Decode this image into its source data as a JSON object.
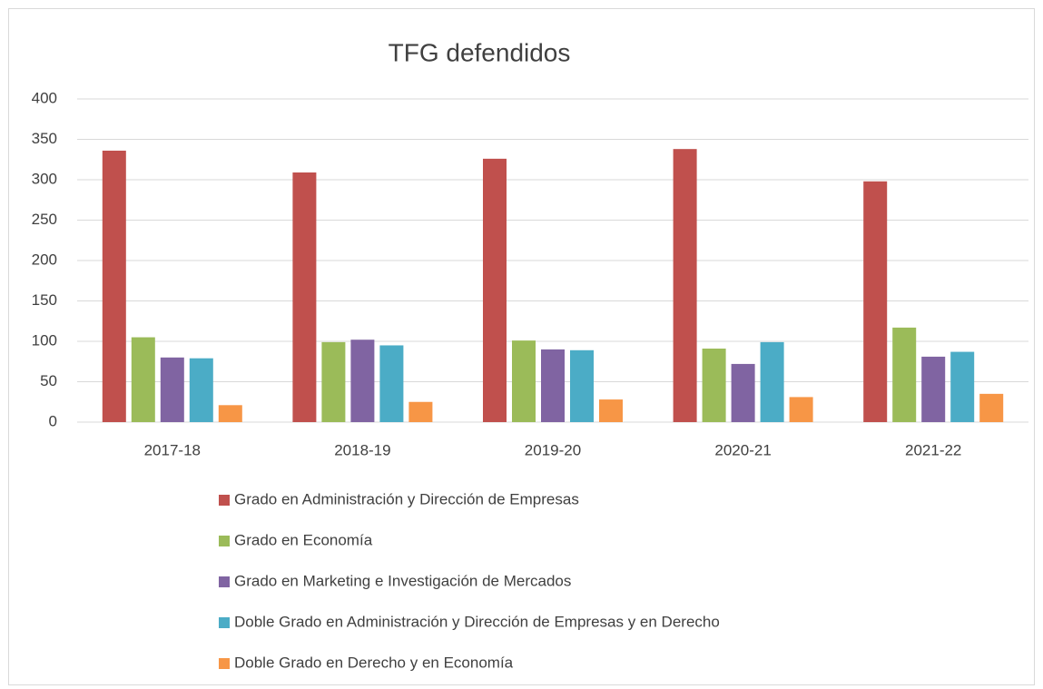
{
  "chart_data": {
    "type": "bar",
    "title": "TFG defendidos",
    "categories": [
      "2017-18",
      "2018-19",
      "2019-20",
      "2020-21",
      "2021-22"
    ],
    "series": [
      {
        "name": "Grado en Administración y Dirección de Empresas",
        "color": "#c0504d",
        "values": [
          336,
          309,
          326,
          338,
          298
        ]
      },
      {
        "name": "Grado en Economía",
        "color": "#9bbb59",
        "values": [
          105,
          99,
          101,
          91,
          117
        ]
      },
      {
        "name": "Grado en Marketing e Investigación de Mercados",
        "color": "#8064a2",
        "values": [
          80,
          102,
          90,
          72,
          81
        ]
      },
      {
        "name": "Doble Grado en Administración y Dirección de Empresas y en Derecho",
        "color": "#4bacc6",
        "values": [
          79,
          95,
          89,
          99,
          87
        ]
      },
      {
        "name": "Doble Grado en Derecho y en Economía",
        "color": "#f79646",
        "values": [
          21,
          25,
          28,
          31,
          35
        ]
      }
    ],
    "ylim": [
      0,
      400
    ],
    "yticks": [
      0,
      50,
      100,
      150,
      200,
      250,
      300,
      350,
      400
    ],
    "grid": true,
    "legend": "bottom"
  }
}
